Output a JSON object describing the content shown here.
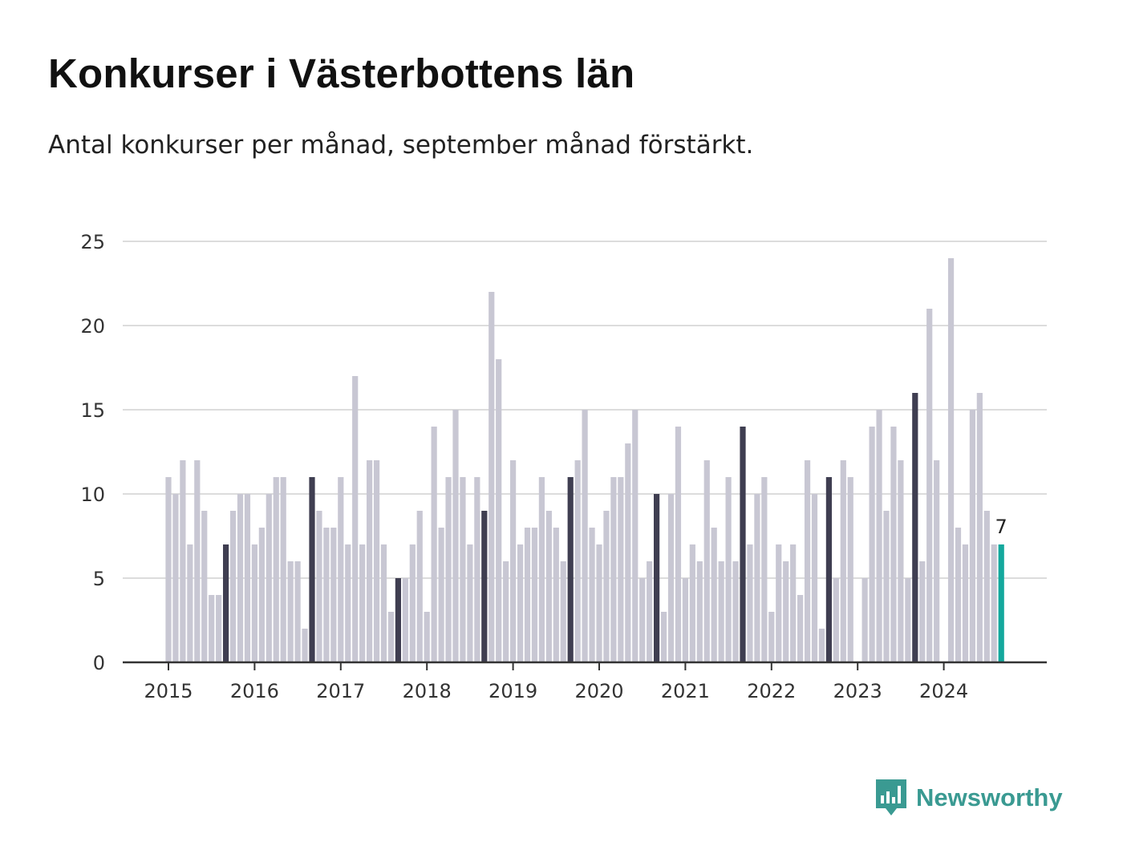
{
  "title": "Konkurser i Västerbottens län",
  "subtitle": "Antal konkurser per månad, september månad förstärkt.",
  "brand": "Newsworthy",
  "colors": {
    "bar": "#c8c7d3",
    "highlight": "#3f3e51",
    "latest": "#14a89d",
    "grid": "#dcdcdc",
    "axis": "#333333",
    "brand": "#3a9a92"
  },
  "chart_data": {
    "type": "bar",
    "title": "Konkurser i Västerbottens län",
    "subtitle": "Antal konkurser per månad, september månad förstärkt.",
    "xlabel": "",
    "ylabel": "",
    "ylim": [
      0,
      25
    ],
    "yticks": [
      0,
      5,
      10,
      15,
      20,
      25
    ],
    "xticks": [
      "2015",
      "2016",
      "2017",
      "2018",
      "2019",
      "2020",
      "2021",
      "2022",
      "2023",
      "2024"
    ],
    "grid": true,
    "start": "2015-01",
    "end": "2024-09",
    "highlight_month": "september",
    "latest_label": "7",
    "values": [
      11,
      10,
      12,
      7,
      12,
      9,
      4,
      4,
      7,
      9,
      10,
      10,
      7,
      8,
      10,
      11,
      11,
      6,
      6,
      2,
      11,
      9,
      8,
      8,
      11,
      7,
      17,
      7,
      12,
      12,
      7,
      3,
      5,
      5,
      7,
      9,
      3,
      14,
      8,
      11,
      15,
      11,
      7,
      11,
      9,
      22,
      18,
      6,
      12,
      7,
      8,
      8,
      11,
      9,
      8,
      6,
      11,
      12,
      15,
      8,
      7,
      9,
      11,
      11,
      13,
      15,
      5,
      6,
      10,
      3,
      10,
      14,
      5,
      7,
      6,
      12,
      8,
      6,
      11,
      6,
      14,
      7,
      10,
      11,
      3,
      7,
      6,
      7,
      4,
      12,
      10,
      2,
      11,
      5,
      12,
      11,
      0,
      5,
      14,
      15,
      9,
      14,
      12,
      5,
      16,
      6,
      21,
      12,
      0,
      24,
      8,
      7,
      15,
      16,
      9,
      7,
      7
    ]
  }
}
